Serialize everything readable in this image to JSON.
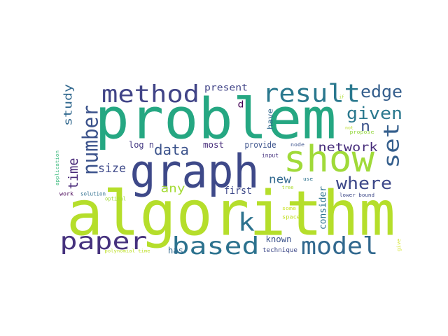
{
  "chart_data": {
    "type": "wordcloud",
    "words": [
      {
        "text": "algorithm",
        "color": "#b5de2b"
      },
      {
        "text": "problem",
        "color": "#25a782"
      },
      {
        "text": "graph",
        "color": "#3e4989"
      },
      {
        "text": "show",
        "color": "#a0da39"
      },
      {
        "text": "result",
        "color": "#2a788e"
      },
      {
        "text": "method",
        "color": "#414487"
      },
      {
        "text": "paper",
        "color": "#46327e"
      },
      {
        "text": "based",
        "color": "#2c728e"
      },
      {
        "text": "model",
        "color": "#31688e"
      },
      {
        "text": "number",
        "color": "#3b528b"
      },
      {
        "text": "set",
        "color": "#355f8d"
      },
      {
        "text": "k",
        "color": "#2c728e"
      },
      {
        "text": "edge",
        "color": "#355f8d"
      },
      {
        "text": "given",
        "color": "#2a788e"
      },
      {
        "text": "n",
        "color": "#3b528b"
      },
      {
        "text": "where",
        "color": "#3e4989"
      },
      {
        "text": "network",
        "color": "#472d7b"
      },
      {
        "text": "data",
        "color": "#3b528b"
      },
      {
        "text": "size",
        "color": "#3e4989"
      },
      {
        "text": "time",
        "color": "#482878"
      },
      {
        "text": "study",
        "color": "#31688e"
      },
      {
        "text": "any",
        "color": "#a5db36"
      },
      {
        "text": "new",
        "color": "#31688e"
      },
      {
        "text": "first",
        "color": "#3e4989"
      },
      {
        "text": "present",
        "color": "#414487"
      },
      {
        "text": "d",
        "color": "#440154"
      },
      {
        "text": "log n",
        "color": "#443983"
      },
      {
        "text": "most",
        "color": "#472c7a"
      },
      {
        "text": "provide",
        "color": "#3b528b"
      },
      {
        "text": "have",
        "color": "#31688e"
      },
      {
        "text": "consider",
        "color": "#2c728e"
      },
      {
        "text": "known",
        "color": "#3b528b"
      },
      {
        "text": "technique",
        "color": "#3e4989"
      },
      {
        "text": "has",
        "color": "#31688e"
      },
      {
        "text": "input",
        "color": "#46337f"
      },
      {
        "text": "node",
        "color": "#3b528b"
      },
      {
        "text": "use",
        "color": "#2c728e"
      },
      {
        "text": "tree",
        "color": "#addc30"
      },
      {
        "text": "space",
        "color": "#c2df23"
      },
      {
        "text": "some",
        "color": "#cae11f"
      },
      {
        "text": "lower bound",
        "color": "#3e4989"
      },
      {
        "text": "give",
        "color": "#d0e11c"
      },
      {
        "text": "solution",
        "color": "#2e6e8e"
      },
      {
        "text": "work",
        "color": "#440154"
      },
      {
        "text": "optimal",
        "color": "#a2da37"
      },
      {
        "text": "polynomial time",
        "color": "#bddf26"
      },
      {
        "text": "application",
        "color": "#35b779"
      },
      {
        "text": "propose",
        "color": "#95d840"
      },
      {
        "text": "not",
        "color": "#bade28"
      },
      {
        "text": "if",
        "color": "#addc30"
      }
    ]
  }
}
